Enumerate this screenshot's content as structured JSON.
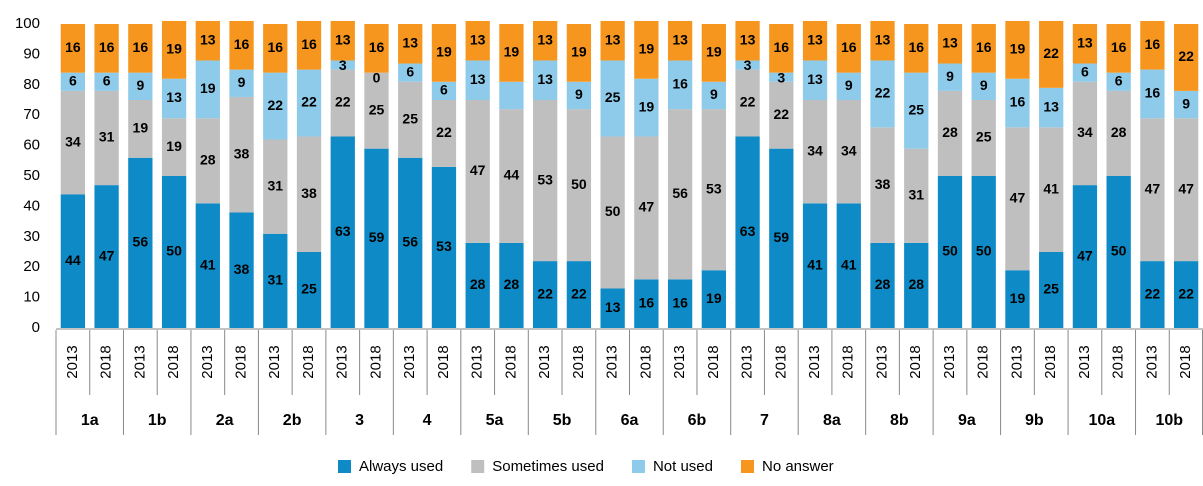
{
  "chart_data": {
    "type": "stacked_bar",
    "groups": [
      "1a",
      "1b",
      "2a",
      "2b",
      "3",
      "4",
      "5a",
      "5b",
      "6a",
      "6b",
      "7",
      "8a",
      "8b",
      "9a",
      "9b",
      "10a",
      "10b"
    ],
    "categories": [
      "2013",
      "2018",
      "2013",
      "2018",
      "2013",
      "2018",
      "2013",
      "2018",
      "2013",
      "2018",
      "2013",
      "2018",
      "2013",
      "2018",
      "2013",
      "2018",
      "2013",
      "2018",
      "2013",
      "2018",
      "2013",
      "2018",
      "2013",
      "2018",
      "2013",
      "2018",
      "2013",
      "2018",
      "2013",
      "2018",
      "2013",
      "2018",
      "2013",
      "2018"
    ],
    "series": [
      {
        "name": "Always used",
        "color": "#0e8ac6",
        "values": [
          44,
          47,
          56,
          50,
          41,
          38,
          31,
          25,
          63,
          59,
          56,
          53,
          28,
          28,
          22,
          22,
          13,
          16,
          16,
          19,
          63,
          59,
          41,
          41,
          28,
          28,
          50,
          50,
          19,
          25,
          47,
          50,
          22,
          22
        ]
      },
      {
        "name": "Sometimes used",
        "color": "#bfbfbf",
        "values": [
          34,
          31,
          19,
          19,
          28,
          38,
          31,
          38,
          22,
          25,
          25,
          22,
          47,
          44,
          53,
          50,
          50,
          47,
          56,
          53,
          22,
          22,
          34,
          34,
          38,
          31,
          28,
          25,
          47,
          41,
          34,
          28,
          47,
          47
        ]
      },
      {
        "name": "Not used",
        "color": "#8ecbea",
        "values": [
          6,
          6,
          9,
          13,
          19,
          9,
          22,
          22,
          3,
          0,
          6,
          6,
          13,
          9,
          13,
          9,
          25,
          19,
          16,
          9,
          3,
          3,
          13,
          9,
          22,
          25,
          9,
          9,
          16,
          13,
          6,
          6,
          16,
          9
        ],
        "value_labels": [
          "6",
          "6",
          "9",
          "13",
          "19",
          "9",
          "22",
          "22",
          "3",
          "0",
          "6",
          "6",
          "13",
          null,
          "13",
          "9",
          "25",
          "19",
          "16",
          "9",
          "3",
          "3",
          "13",
          "9",
          "22",
          "25",
          "9",
          "9",
          "16",
          "13",
          "6",
          "6",
          "16",
          "9"
        ]
      },
      {
        "name": "No answer",
        "color": "#f7961e",
        "values": [
          16,
          16,
          16,
          19,
          13,
          16,
          16,
          16,
          13,
          16,
          13,
          19,
          13,
          19,
          13,
          19,
          13,
          19,
          13,
          19,
          13,
          16,
          13,
          16,
          13,
          16,
          13,
          16,
          19,
          22,
          13,
          16,
          16,
          22
        ]
      }
    ],
    "ylim": [
      0,
      100
    ],
    "yticks": [
      0,
      10,
      20,
      30,
      40,
      50,
      60,
      70,
      80,
      90,
      100
    ]
  }
}
